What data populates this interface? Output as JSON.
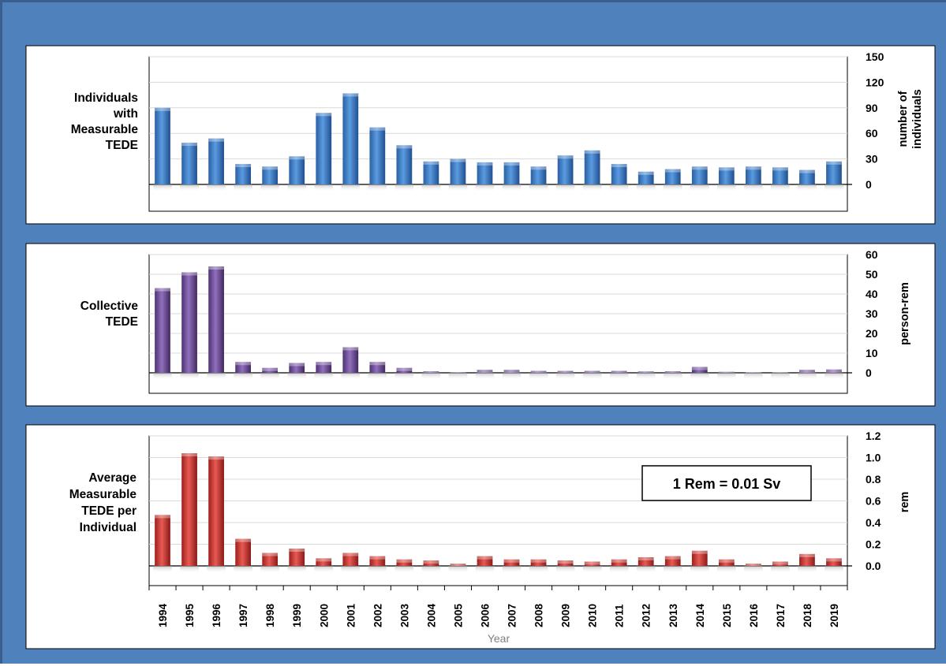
{
  "colors": {
    "background": "#4f81bd",
    "panel": "#ffffff",
    "series_individuals": "#3a78c9",
    "series_collective": "#6f4a9a",
    "series_average": "#c9302c"
  },
  "chart_data": [
    {
      "type": "bar",
      "panel_label": [
        "Individuals",
        "with",
        "Measurable",
        "TEDE"
      ],
      "ylabel": [
        "number of",
        "individuals"
      ],
      "ylim": [
        0,
        150
      ],
      "yticks": [
        "150",
        "120",
        "90",
        "60",
        "30",
        "0"
      ],
      "yticks_values": [
        150,
        120,
        90,
        60,
        30,
        0
      ],
      "categories": [
        "1994",
        "1995",
        "1996",
        "1997",
        "1998",
        "1999",
        "2000",
        "2001",
        "2002",
        "2003",
        "2004",
        "2005",
        "2006",
        "2007",
        "2008",
        "2009",
        "2010",
        "2011",
        "2012",
        "2013",
        "2014",
        "2015",
        "2016",
        "2017",
        "2018",
        "2019"
      ],
      "values": [
        90,
        49,
        54,
        24,
        21,
        33,
        84,
        107,
        67,
        46,
        27,
        30,
        26,
        26,
        21,
        34,
        40,
        24,
        15,
        18,
        21,
        20,
        21,
        20,
        17,
        27
      ],
      "grid": true
    },
    {
      "type": "bar",
      "panel_label": [
        "Collective",
        "TEDE"
      ],
      "ylabel": [
        "person-rem"
      ],
      "ylim": [
        0,
        60
      ],
      "yticks": [
        "60",
        "50",
        "40",
        "30",
        "20",
        "10",
        "0"
      ],
      "yticks_values": [
        60,
        50,
        40,
        30,
        20,
        10,
        0
      ],
      "categories": [
        "1994",
        "1995",
        "1996",
        "1997",
        "1998",
        "1999",
        "2000",
        "2001",
        "2002",
        "2003",
        "2004",
        "2005",
        "2006",
        "2007",
        "2008",
        "2009",
        "2010",
        "2011",
        "2012",
        "2013",
        "2014",
        "2015",
        "2016",
        "2017",
        "2018",
        "2019"
      ],
      "values": [
        43,
        51,
        54,
        5.5,
        2.5,
        5,
        5.5,
        13,
        5.5,
        2.5,
        0.8,
        0.3,
        1.5,
        1.5,
        1,
        1,
        1,
        1,
        0.7,
        0.8,
        3,
        0.5,
        0.2,
        0.2,
        1.5,
        1.7
      ],
      "grid": true
    },
    {
      "type": "bar",
      "panel_label": [
        "Average",
        "Measurable",
        "TEDE per",
        "Individual"
      ],
      "ylabel": [
        "rem"
      ],
      "ylim": [
        0,
        1.2
      ],
      "yticks": [
        "1.2",
        "1.0",
        "0.8",
        "0.6",
        "0.4",
        "0.2",
        "0.0"
      ],
      "yticks_values": [
        1.2,
        1.0,
        0.8,
        0.6,
        0.4,
        0.2,
        0.0
      ],
      "categories": [
        "1994",
        "1995",
        "1996",
        "1997",
        "1998",
        "1999",
        "2000",
        "2001",
        "2002",
        "2003",
        "2004",
        "2005",
        "2006",
        "2007",
        "2008",
        "2009",
        "2010",
        "2011",
        "2012",
        "2013",
        "2014",
        "2015",
        "2016",
        "2017",
        "2018",
        "2019"
      ],
      "values": [
        0.47,
        1.04,
        1.01,
        0.25,
        0.12,
        0.16,
        0.07,
        0.12,
        0.09,
        0.06,
        0.05,
        0.02,
        0.09,
        0.06,
        0.06,
        0.05,
        0.04,
        0.06,
        0.08,
        0.09,
        0.14,
        0.06,
        0.02,
        0.04,
        0.11,
        0.07
      ],
      "grid": true,
      "annotation": "1 Rem = 0.01 Sv",
      "xlabel": "Year"
    }
  ]
}
